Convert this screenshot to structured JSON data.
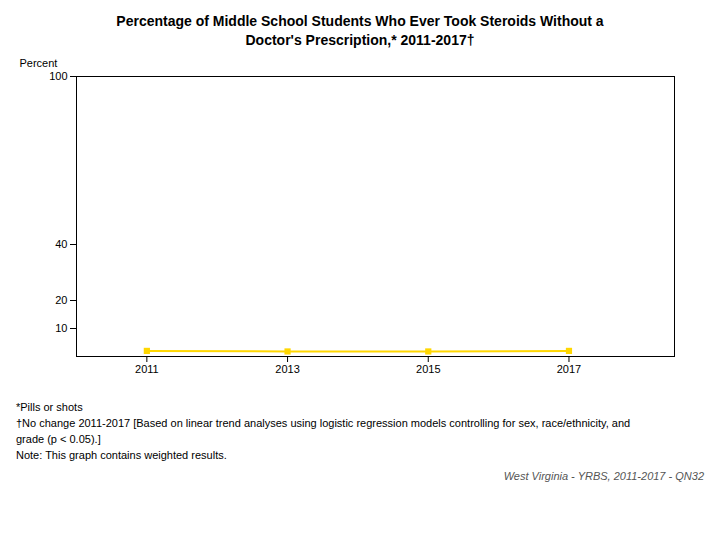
{
  "chart_data": {
    "type": "line",
    "title": "Percentage of Middle School Students Who Ever Took Steroids Without a\nDoctor's Prescription,* 2011-2017†",
    "x": [
      2011,
      2013,
      2015,
      2017
    ],
    "values": [
      2.0,
      1.8,
      1.8,
      2.0
    ],
    "color": "#FFD700",
    "marker": "square",
    "ylabel": "Percent",
    "xlim": [
      2010.0,
      2018.5
    ],
    "xticks": [
      2011,
      2013,
      2015,
      2017
    ],
    "ylim": [
      0,
      100
    ],
    "yticks": [
      10,
      20,
      40,
      100
    ],
    "grid": false,
    "annotations": [
      "*Pills or shots",
      "†No change 2011-2017 [Based on linear trend analyses using logistic regression models controlling for sex, race/ethnicity, and",
      "grade (p < 0.05).]",
      "Note:  This graph contains weighted results."
    ],
    "source": "West Virginia - YRBS, 2011-2017 - QN32"
  }
}
